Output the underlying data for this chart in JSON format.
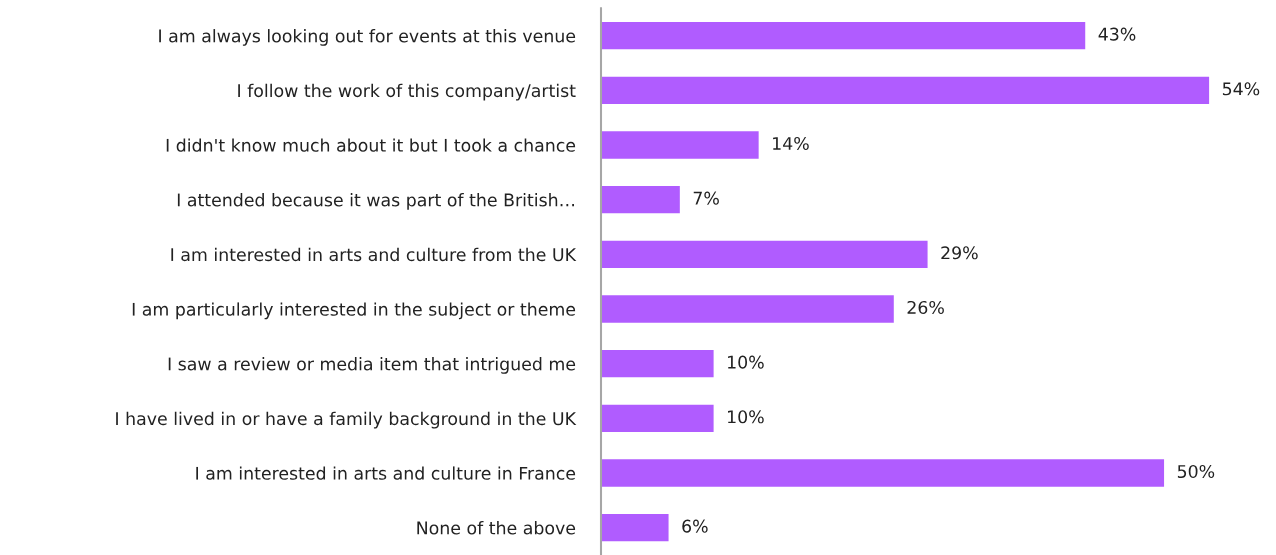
{
  "chart_data": {
    "type": "bar",
    "orientation": "horizontal",
    "categories": [
      "I am always looking out for events at this venue",
      "I follow the work of this company/artist",
      "I didn't know much about it but I took a chance",
      "I attended because it was part of the British…",
      "I am interested in arts and culture from the UK",
      "I am particularly interested in the subject or theme",
      "I saw a review or media item that intrigued me",
      "I have lived in or have a family background in the UK",
      "I am interested in arts and culture in France",
      "None of the above"
    ],
    "values": [
      43,
      54,
      14,
      7,
      29,
      26,
      10,
      10,
      50,
      6
    ],
    "value_labels": [
      "43%",
      "54%",
      "14%",
      "7%",
      "29%",
      "26%",
      "10%",
      "10%",
      "50%",
      "6%"
    ],
    "color": "#b05cff",
    "grid": false,
    "legend": false
  }
}
